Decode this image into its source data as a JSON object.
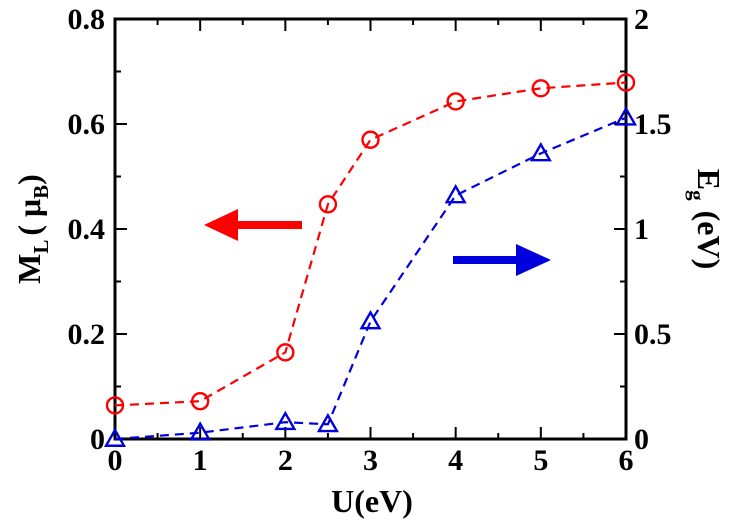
{
  "chart_data": {
    "type": "line",
    "xlabel": "U(eV)",
    "x": [
      0,
      1,
      2,
      2.5,
      3,
      4,
      5,
      6
    ],
    "xlim": [
      0,
      6
    ],
    "xticks": [
      "0",
      "1",
      "2",
      "3",
      "4",
      "5",
      "6"
    ],
    "left_axis": {
      "label_main": "M",
      "label_sub": "L",
      "label_mid": "( μ",
      "label_sub2": "B",
      "label_end": ")",
      "ylim": [
        0,
        0.8
      ],
      "ticks": [
        "0",
        "0.2",
        "0.4",
        "0.6",
        "0.8"
      ]
    },
    "right_axis": {
      "label_main": "E",
      "label_sub": "g",
      "label_end": "(eV)",
      "ylim": [
        0,
        2
      ],
      "ticks": [
        "0",
        "0.5",
        "1",
        "1.5",
        "2"
      ]
    },
    "series": [
      {
        "name": "M_L",
        "axis": "left",
        "marker": "circle",
        "color": "#ff0000",
        "values": [
          0.064,
          0.072,
          0.165,
          0.447,
          0.57,
          0.643,
          0.668,
          0.679
        ]
      },
      {
        "name": "E_g",
        "axis": "right",
        "marker": "triangle",
        "color": "#0000dd",
        "values": [
          0.0,
          0.03,
          0.08,
          0.07,
          0.56,
          1.16,
          1.36,
          1.53
        ]
      }
    ],
    "annotations": [
      {
        "type": "arrow",
        "direction": "left",
        "color": "#ff0000",
        "points_to": "left axis"
      },
      {
        "type": "arrow",
        "direction": "right",
        "color": "#0000dd",
        "points_to": "right axis"
      }
    ],
    "grid": false
  }
}
